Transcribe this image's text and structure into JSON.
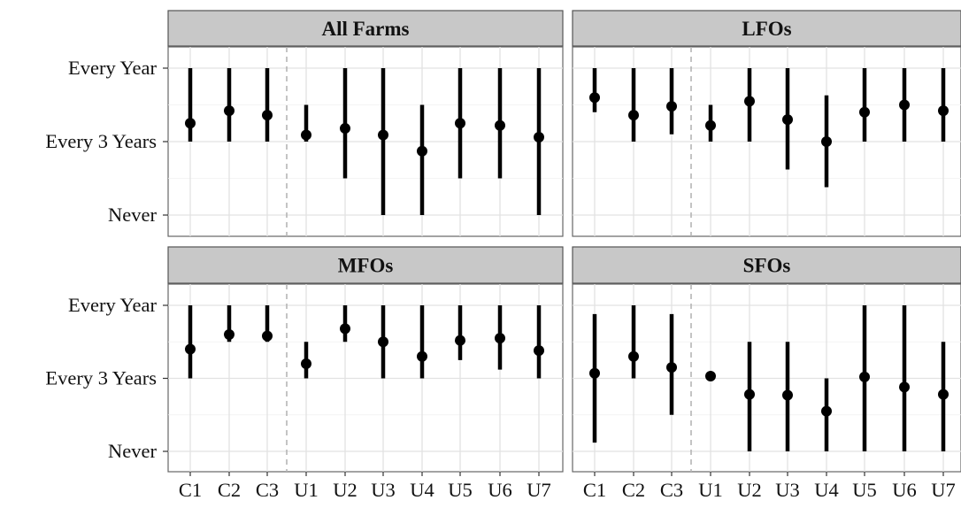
{
  "chart_data": {
    "type": "scatter",
    "variant": "point-range-facets",
    "categories": [
      "C1",
      "C2",
      "C3",
      "U1",
      "U2",
      "U3",
      "U4",
      "U5",
      "U6",
      "U7"
    ],
    "divider_after": "C3",
    "y_scale": {
      "min": 0,
      "max": 2
    },
    "y_ticks": [
      {
        "value": 2,
        "label": "Every Year"
      },
      {
        "value": 1,
        "label": "Every 3 Years"
      },
      {
        "value": 0,
        "label": "Never"
      }
    ],
    "grid": true,
    "facets": [
      {
        "title": "All Farms",
        "points": [
          {
            "x": "C1",
            "y": 1.25,
            "low": 1.0,
            "high": 2.0
          },
          {
            "x": "C2",
            "y": 1.42,
            "low": 1.0,
            "high": 2.0
          },
          {
            "x": "C3",
            "y": 1.36,
            "low": 1.0,
            "high": 2.0
          },
          {
            "x": "U1",
            "y": 1.09,
            "low": 1.0,
            "high": 1.5
          },
          {
            "x": "U2",
            "y": 1.18,
            "low": 0.5,
            "high": 2.0
          },
          {
            "x": "U3",
            "y": 1.09,
            "low": 0.0,
            "high": 2.0
          },
          {
            "x": "U4",
            "y": 0.87,
            "low": 0.0,
            "high": 1.5
          },
          {
            "x": "U5",
            "y": 1.25,
            "low": 0.5,
            "high": 2.0
          },
          {
            "x": "U6",
            "y": 1.22,
            "low": 0.5,
            "high": 2.0
          },
          {
            "x": "U7",
            "y": 1.06,
            "low": 0.0,
            "high": 2.0
          }
        ]
      },
      {
        "title": "LFOs",
        "points": [
          {
            "x": "C1",
            "y": 1.6,
            "low": 1.4,
            "high": 2.0
          },
          {
            "x": "C2",
            "y": 1.36,
            "low": 1.0,
            "high": 2.0
          },
          {
            "x": "C3",
            "y": 1.48,
            "low": 1.1,
            "high": 2.0
          },
          {
            "x": "U1",
            "y": 1.22,
            "low": 1.0,
            "high": 1.5
          },
          {
            "x": "U2",
            "y": 1.55,
            "low": 1.0,
            "high": 2.0
          },
          {
            "x": "U3",
            "y": 1.3,
            "low": 0.62,
            "high": 2.0
          },
          {
            "x": "U4",
            "y": 1.0,
            "low": 0.38,
            "high": 1.63
          },
          {
            "x": "U5",
            "y": 1.4,
            "low": 1.0,
            "high": 2.0
          },
          {
            "x": "U6",
            "y": 1.5,
            "low": 1.0,
            "high": 2.0
          },
          {
            "x": "U7",
            "y": 1.42,
            "low": 1.0,
            "high": 2.0
          }
        ]
      },
      {
        "title": "MFOs",
        "points": [
          {
            "x": "C1",
            "y": 1.4,
            "low": 1.0,
            "high": 2.0
          },
          {
            "x": "C2",
            "y": 1.6,
            "low": 1.5,
            "high": 2.0
          },
          {
            "x": "C3",
            "y": 1.58,
            "low": 1.5,
            "high": 2.0
          },
          {
            "x": "U1",
            "y": 1.2,
            "low": 1.0,
            "high": 1.5
          },
          {
            "x": "U2",
            "y": 1.68,
            "low": 1.5,
            "high": 2.0
          },
          {
            "x": "U3",
            "y": 1.5,
            "low": 1.0,
            "high": 2.0
          },
          {
            "x": "U4",
            "y": 1.3,
            "low": 1.0,
            "high": 2.0
          },
          {
            "x": "U5",
            "y": 1.52,
            "low": 1.25,
            "high": 2.0
          },
          {
            "x": "U6",
            "y": 1.55,
            "low": 1.12,
            "high": 2.0
          },
          {
            "x": "U7",
            "y": 1.38,
            "low": 1.0,
            "high": 2.0
          }
        ]
      },
      {
        "title": "SFOs",
        "points": [
          {
            "x": "C1",
            "y": 1.07,
            "low": 0.12,
            "high": 1.88
          },
          {
            "x": "C2",
            "y": 1.3,
            "low": 1.0,
            "high": 2.0
          },
          {
            "x": "C3",
            "y": 1.15,
            "low": 0.5,
            "high": 1.88
          },
          {
            "x": "U1",
            "y": 1.03,
            "low": null,
            "high": null
          },
          {
            "x": "U2",
            "y": 0.78,
            "low": 0.0,
            "high": 1.5
          },
          {
            "x": "U3",
            "y": 0.77,
            "low": 0.0,
            "high": 1.5
          },
          {
            "x": "U4",
            "y": 0.55,
            "low": 0.0,
            "high": 1.0
          },
          {
            "x": "U5",
            "y": 1.02,
            "low": 0.0,
            "high": 2.0
          },
          {
            "x": "U6",
            "y": 0.88,
            "low": 0.0,
            "high": 2.0
          },
          {
            "x": "U7",
            "y": 0.78,
            "low": 0.0,
            "high": 1.5
          }
        ]
      }
    ]
  }
}
